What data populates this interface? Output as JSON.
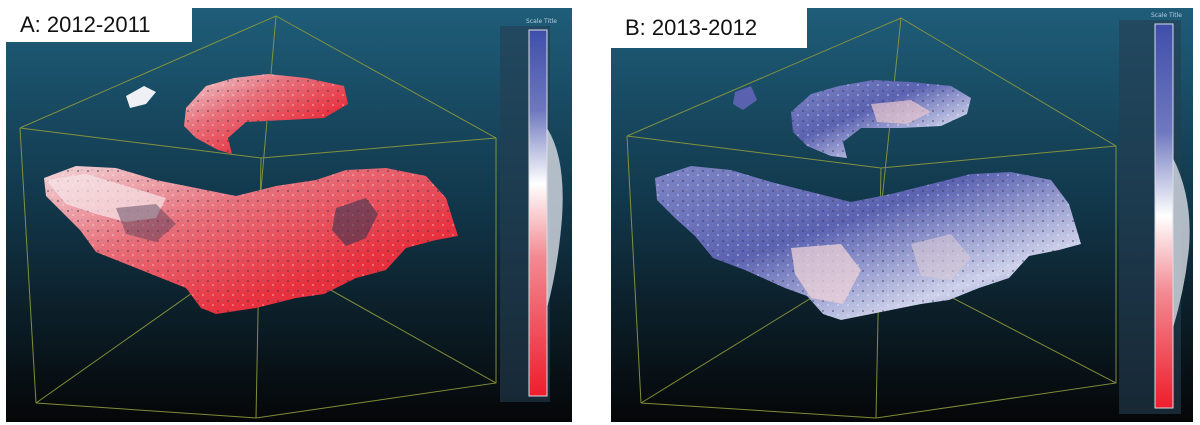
{
  "panels": [
    {
      "id": "a",
      "label": "A: 2012-2011",
      "scale_title": "Scale Title",
      "color_ramp": [
        "#3f4faa",
        "#ffffff",
        "#ee1d2d"
      ],
      "dominant_tone": "red"
    },
    {
      "id": "b",
      "label": "B: 2013-2012",
      "scale_title": "Scale Title",
      "color_ramp": [
        "#3f4faa",
        "#ffffff",
        "#ee1d2d"
      ],
      "dominant_tone": "blue"
    }
  ]
}
